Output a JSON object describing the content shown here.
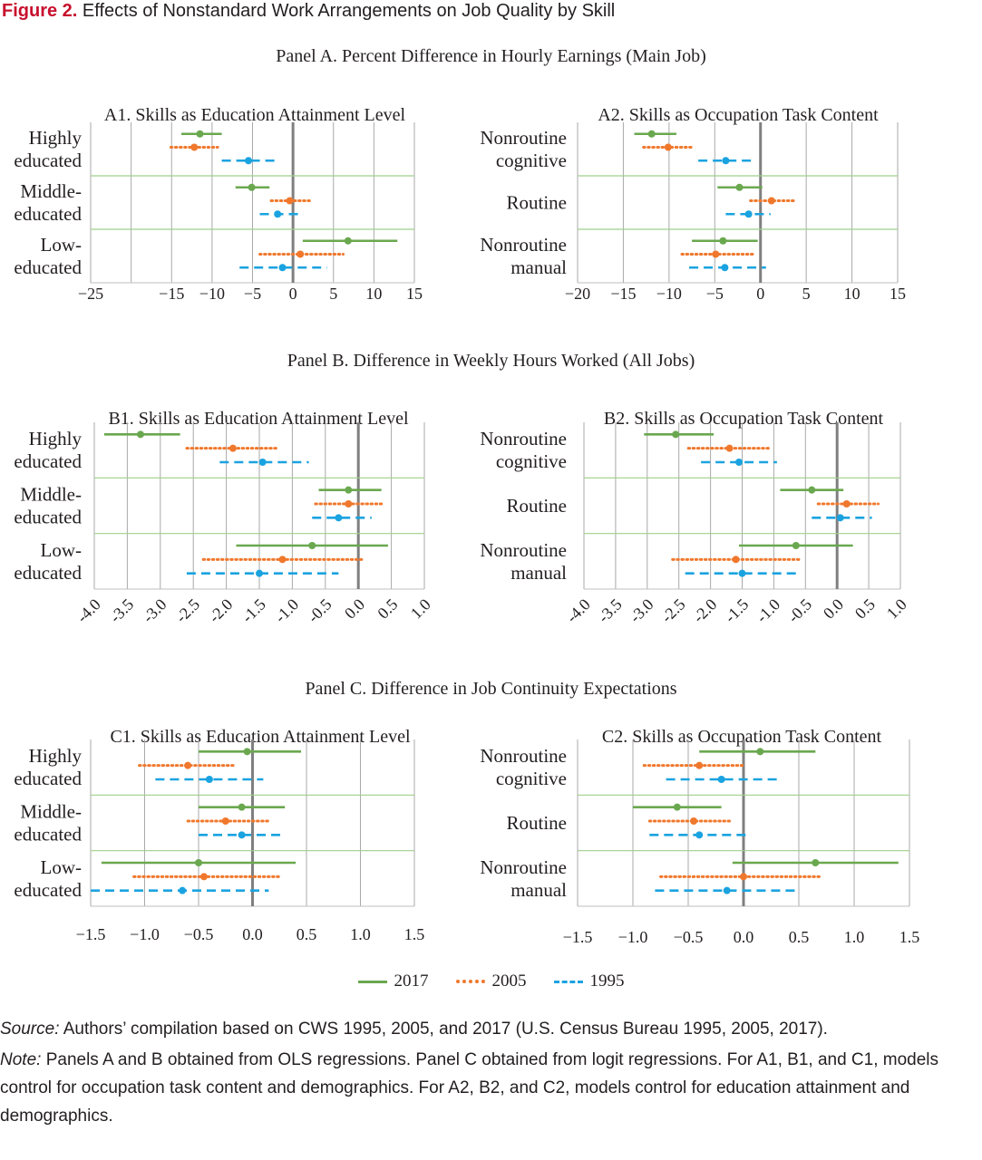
{
  "figure": {
    "label": "Figure 2.",
    "title": "Effects of Nonstandard Work Arrangements on Job Quality by Skill"
  },
  "panels": {
    "a": "Panel A. Percent Difference in Hourly Earnings (Main Job)",
    "b": "Panel B. Difference in Weekly Hours Worked (All Jobs)",
    "c": "Panel C. Difference in Job Continuity Expectations"
  },
  "colors": {
    "2017": "#6aa84f",
    "2005": "#f0782d",
    "1995": "#1aa3e0",
    "grid": "#a9a9a9",
    "sep": "#9fcf8a",
    "zero": "#7f7f7f"
  },
  "legend": [
    {
      "key": "2017",
      "label": "2017"
    },
    {
      "key": "2005",
      "label": "2005"
    },
    {
      "key": "1995",
      "label": "1995"
    }
  ],
  "source": {
    "label": "Source:",
    "text": "Authors’ compilation based on CWS 1995, 2005, and 2017 (U.S. Census Bureau 1995, 2005, 2017)."
  },
  "note": {
    "label": "Note:",
    "text": "Panels A and B obtained from OLS regressions. Panel C obtained from logit regressions. For A1, B1, and C1, models control for occupation task content and demographics. For A2, B2, and C2, models control for education attainment and demographics."
  },
  "chart_data": [
    {
      "id": "A1",
      "type": "errorbar",
      "title": "A1. Skills as Education Attainment Level",
      "xlim": [
        -25,
        15
      ],
      "ticks": [
        -25,
        -20,
        -15,
        -10,
        -5,
        0,
        5,
        10,
        15
      ],
      "tick_labels": [
        "−25",
        "−15",
        "−10",
        "−5",
        "0",
        "5",
        "10",
        "15"
      ],
      "tick_label_values": [
        -25,
        -15,
        -10,
        -5,
        0,
        5,
        10,
        15
      ],
      "rotated": false,
      "groups": [
        {
          "label": [
            "Highly",
            "educated"
          ],
          "series": [
            {
              "year": "2017",
              "est": -11.5,
              "lo": -13.8,
              "hi": -8.8
            },
            {
              "year": "2005",
              "est": -12.2,
              "lo": -15.1,
              "hi": -9.3
            },
            {
              "year": "1995",
              "est": -5.5,
              "lo": -8.8,
              "hi": -2.0
            }
          ]
        },
        {
          "label": [
            "Middle-",
            "educated"
          ],
          "series": [
            {
              "year": "2017",
              "est": -5.1,
              "lo": -7.1,
              "hi": -2.9
            },
            {
              "year": "2005",
              "est": -0.4,
              "lo": -2.7,
              "hi": 2.2
            },
            {
              "year": "1995",
              "est": -1.9,
              "lo": -4.1,
              "hi": 0.7
            }
          ]
        },
        {
          "label": [
            "Low-",
            "educated"
          ],
          "series": [
            {
              "year": "2017",
              "est": 6.8,
              "lo": 1.2,
              "hi": 12.9
            },
            {
              "year": "2005",
              "est": 0.9,
              "lo": -4.1,
              "hi": 6.2
            },
            {
              "year": "1995",
              "est": -1.3,
              "lo": -6.6,
              "hi": 4.2
            }
          ]
        }
      ]
    },
    {
      "id": "A2",
      "type": "errorbar",
      "title": "A2. Skills as Occupation Task Content",
      "xlim": [
        -20,
        15
      ],
      "ticks": [
        -20,
        -15,
        -10,
        -5,
        0,
        5,
        10,
        15
      ],
      "tick_labels": [
        "−20",
        "−15",
        "−10",
        "−5",
        "0",
        "5",
        "10",
        "15"
      ],
      "tick_label_values": [
        -20,
        -15,
        -10,
        -5,
        0,
        5,
        10,
        15
      ],
      "rotated": false,
      "groups": [
        {
          "label": [
            "Nonroutine",
            "cognitive"
          ],
          "series": [
            {
              "year": "2017",
              "est": -11.9,
              "lo": -13.8,
              "hi": -9.2
            },
            {
              "year": "2005",
              "est": -10.1,
              "lo": -12.8,
              "hi": -7.5
            },
            {
              "year": "1995",
              "est": -3.8,
              "lo": -6.8,
              "hi": -0.6
            }
          ]
        },
        {
          "label": [
            "Routine"
          ],
          "series": [
            {
              "year": "2017",
              "est": -2.3,
              "lo": -4.7,
              "hi": 0.2
            },
            {
              "year": "2005",
              "est": 1.2,
              "lo": -1.1,
              "hi": 3.8
            },
            {
              "year": "1995",
              "est": -1.3,
              "lo": -3.8,
              "hi": 1.1
            }
          ]
        },
        {
          "label": [
            "Nonroutine",
            "manual"
          ],
          "series": [
            {
              "year": "2017",
              "est": -4.1,
              "lo": -7.5,
              "hi": -0.3
            },
            {
              "year": "2005",
              "est": -4.9,
              "lo": -8.6,
              "hi": -0.8
            },
            {
              "year": "1995",
              "est": -3.9,
              "lo": -7.8,
              "hi": 0.6
            }
          ]
        }
      ]
    },
    {
      "id": "B1",
      "type": "errorbar",
      "title": "B1. Skills as Education Attainment Level",
      "xlim": [
        -4.0,
        1.0
      ],
      "ticks": [
        -4.0,
        -3.5,
        -3.0,
        -2.5,
        -2.0,
        -1.5,
        -1.0,
        -0.5,
        0.0,
        0.5,
        1.0
      ],
      "tick_labels": [
        "-4.0",
        "-3.5",
        "-3.0",
        "-2.5",
        "-2.0",
        "-1.5",
        "-1.0",
        "-0.5",
        "0.0",
        "0.5",
        "1.0"
      ],
      "tick_label_values": [
        -4.0,
        -3.5,
        -3.0,
        -2.5,
        -2.0,
        -1.5,
        -1.0,
        -0.5,
        0.0,
        0.5,
        1.0
      ],
      "rotated": true,
      "groups": [
        {
          "label": [
            "Highly",
            "educated"
          ],
          "series": [
            {
              "year": "2017",
              "est": -3.3,
              "lo": -3.85,
              "hi": -2.7
            },
            {
              "year": "2005",
              "est": -1.9,
              "lo": -2.6,
              "hi": -1.2
            },
            {
              "year": "1995",
              "est": -1.45,
              "lo": -2.1,
              "hi": -0.75
            }
          ]
        },
        {
          "label": [
            "Middle-",
            "educated"
          ],
          "series": [
            {
              "year": "2017",
              "est": -0.15,
              "lo": -0.6,
              "hi": 0.35
            },
            {
              "year": "2005",
              "est": -0.15,
              "lo": -0.65,
              "hi": 0.35
            },
            {
              "year": "1995",
              "est": -0.3,
              "lo": -0.7,
              "hi": 0.2
            }
          ]
        },
        {
          "label": [
            "Low-",
            "educated"
          ],
          "series": [
            {
              "year": "2017",
              "est": -0.7,
              "lo": -1.85,
              "hi": 0.45
            },
            {
              "year": "2005",
              "est": -1.15,
              "lo": -2.35,
              "hi": 0.05
            },
            {
              "year": "1995",
              "est": -1.5,
              "lo": -2.6,
              "hi": -0.3
            }
          ]
        }
      ]
    },
    {
      "id": "B2",
      "type": "errorbar",
      "title": "B2. Skills as Occupation Task Content",
      "xlim": [
        -4.0,
        1.0
      ],
      "ticks": [
        -4.0,
        -3.5,
        -3.0,
        -2.5,
        -2.0,
        -1.5,
        -1.0,
        -0.5,
        0.0,
        0.5,
        1.0
      ],
      "tick_labels": [
        "-4.0",
        "-3.5",
        "-3.0",
        "-2.5",
        "-2.0",
        "-1.5",
        "-1.0",
        "-0.5",
        "0.0",
        "0.5",
        "1.0"
      ],
      "tick_label_values": [
        -4.0,
        -3.5,
        -3.0,
        -2.5,
        -2.0,
        -1.5,
        -1.0,
        -0.5,
        0.0,
        0.5,
        1.0
      ],
      "rotated": true,
      "groups": [
        {
          "label": [
            "Nonroutine",
            "cognitive"
          ],
          "series": [
            {
              "year": "2017",
              "est": -2.55,
              "lo": -3.05,
              "hi": -1.95
            },
            {
              "year": "2005",
              "est": -1.7,
              "lo": -2.35,
              "hi": -1.05
            },
            {
              "year": "1995",
              "est": -1.55,
              "lo": -2.15,
              "hi": -0.95
            }
          ]
        },
        {
          "label": [
            "Routine"
          ],
          "series": [
            {
              "year": "2017",
              "est": -0.4,
              "lo": -0.9,
              "hi": 0.1
            },
            {
              "year": "2005",
              "est": 0.15,
              "lo": -0.3,
              "hi": 0.65
            },
            {
              "year": "1995",
              "est": 0.05,
              "lo": -0.4,
              "hi": 0.55
            }
          ]
        },
        {
          "label": [
            "Nonroutine",
            "manual"
          ],
          "series": [
            {
              "year": "2017",
              "est": -0.65,
              "lo": -1.55,
              "hi": 0.25
            },
            {
              "year": "2005",
              "est": -1.6,
              "lo": -2.6,
              "hi": -0.6
            },
            {
              "year": "1995",
              "est": -1.5,
              "lo": -2.4,
              "hi": -0.6
            }
          ]
        }
      ]
    },
    {
      "id": "C1",
      "type": "errorbar",
      "title": "C1. Skills as Education Attainment Level",
      "xlim": [
        -1.5,
        1.5
      ],
      "ticks": [
        -1.5,
        -1.0,
        -0.5,
        0.0,
        0.5,
        1.0,
        1.5
      ],
      "tick_labels": [
        "−1.5",
        "−1.0",
        "−0.5",
        "0.0",
        "0.5",
        "1.0",
        "1.5"
      ],
      "tick_label_values": [
        -1.5,
        -1.0,
        -0.5,
        0.0,
        0.5,
        1.0,
        1.5
      ],
      "rotated": false,
      "groups": [
        {
          "label": [
            "Highly",
            "educated"
          ],
          "series": [
            {
              "year": "2017",
              "est": -0.05,
              "lo": -0.5,
              "hi": 0.45
            },
            {
              "year": "2005",
              "est": -0.6,
              "lo": -1.05,
              "hi": -0.15
            },
            {
              "year": "1995",
              "est": -0.4,
              "lo": -0.9,
              "hi": 0.1
            }
          ]
        },
        {
          "label": [
            "Middle-",
            "educated"
          ],
          "series": [
            {
              "year": "2017",
              "est": -0.1,
              "lo": -0.5,
              "hi": 0.3
            },
            {
              "year": "2005",
              "est": -0.25,
              "lo": -0.6,
              "hi": 0.15
            },
            {
              "year": "1995",
              "est": -0.1,
              "lo": -0.5,
              "hi": 0.3
            }
          ]
        },
        {
          "label": [
            "Low-",
            "educated"
          ],
          "series": [
            {
              "year": "2017",
              "est": -0.5,
              "lo": -1.4,
              "hi": 0.4
            },
            {
              "year": "2005",
              "est": -0.45,
              "lo": -1.1,
              "hi": 0.25
            },
            {
              "year": "1995",
              "est": -0.65,
              "lo": -1.5,
              "hi": 0.15
            }
          ]
        }
      ]
    },
    {
      "id": "C2",
      "type": "errorbar",
      "title": "C2. Skills as Occupation Task Content",
      "xlim": [
        -1.5,
        1.5
      ],
      "ticks": [
        -1.5,
        -1.0,
        -0.5,
        0.0,
        0.5,
        1.0,
        1.5
      ],
      "tick_labels": [
        "−1.5",
        "−1.0",
        "−0.5",
        "0.0",
        "0.5",
        "1.0",
        "1.5"
      ],
      "tick_label_values": [
        -1.5,
        -1.0,
        -0.5,
        0.0,
        0.5,
        1.0,
        1.5
      ],
      "rotated": false,
      "groups": [
        {
          "label": [
            "Nonroutine",
            "cognitive"
          ],
          "series": [
            {
              "year": "2017",
              "est": 0.15,
              "lo": -0.4,
              "hi": 0.65
            },
            {
              "year": "2005",
              "est": -0.4,
              "lo": -0.9,
              "hi": 0.0
            },
            {
              "year": "1995",
              "est": -0.2,
              "lo": -0.7,
              "hi": 0.3
            }
          ]
        },
        {
          "label": [
            "Routine"
          ],
          "series": [
            {
              "year": "2017",
              "est": -0.6,
              "lo": -1.0,
              "hi": -0.2
            },
            {
              "year": "2005",
              "est": -0.45,
              "lo": -0.85,
              "hi": -0.1
            },
            {
              "year": "1995",
              "est": -0.4,
              "lo": -0.85,
              "hi": 0.05
            }
          ]
        },
        {
          "label": [
            "Nonroutine",
            "manual"
          ],
          "series": [
            {
              "year": "2017",
              "est": 0.65,
              "lo": -0.1,
              "hi": 1.4
            },
            {
              "year": "2005",
              "est": 0.0,
              "lo": -0.75,
              "hi": 0.7
            },
            {
              "year": "1995",
              "est": -0.15,
              "lo": -0.8,
              "hi": 0.5
            }
          ]
        }
      ]
    }
  ]
}
